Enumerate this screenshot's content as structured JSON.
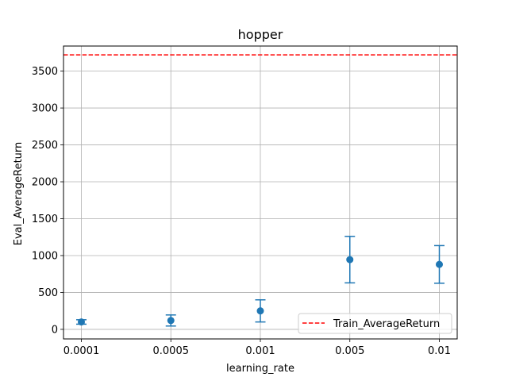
{
  "chart_data": {
    "type": "scatter",
    "title": "hopper",
    "xlabel": "learning_rate",
    "ylabel": "Eval_AverageReturn",
    "x_categories": [
      "0.0001",
      "0.0005",
      "0.001",
      "0.005",
      "0.01"
    ],
    "series": [
      {
        "values": [
          100,
          120,
          250,
          945,
          880
        ],
        "error": [
          30,
          75,
          150,
          315,
          255
        ],
        "color": "#1f77b4"
      }
    ],
    "reference_line": {
      "name": "Train_AverageReturn",
      "value": 3720,
      "color": "#ff0000",
      "style": "dashed"
    },
    "y_ticks": [
      0,
      500,
      1000,
      1500,
      2000,
      2500,
      3000,
      3500
    ],
    "ylim": [
      -130,
      3840
    ],
    "grid": true,
    "legend_position": "lower right"
  }
}
